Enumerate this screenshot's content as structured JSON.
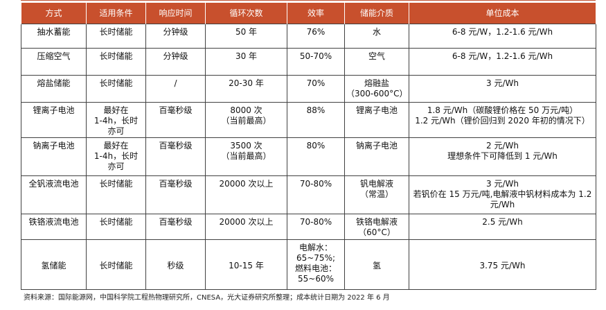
{
  "table": {
    "headers": [
      "方式",
      "适用条件",
      "响应时间",
      "循环次数",
      "效率",
      "储能介质",
      "单位成本"
    ],
    "rows": [
      {
        "method": "抽水蓄能",
        "condition": "长时储能",
        "response": "分钟级",
        "cycles": "50 年",
        "efficiency": "76%",
        "medium": "水",
        "cost": "6-8 元/W，1.2-1.6 元/Wh"
      },
      {
        "method": "压缩空气",
        "condition": "长时储能",
        "response": "分钟级",
        "cycles": "30 年",
        "efficiency": "50-70%",
        "medium": "空气",
        "cost": "6-8 元/W，1.2-1.6 元/Wh"
      },
      {
        "method": "熔盐储能",
        "condition": "长时储能",
        "response": "/",
        "cycles": "20-30 年",
        "efficiency": "70%",
        "medium": "熔融盐\n（300-600°C）",
        "cost": "3 元/Wh"
      },
      {
        "method": "锂离子电池",
        "condition": "最好在\n1-4h，长时\n亦可",
        "response": "百毫秒级",
        "cycles": "8000 次\n（当前最高）",
        "efficiency": "88%",
        "medium": "锂离子电池",
        "cost": "1.8 元/Wh（碳酸锂价格在 50 万元/吨）\n1.2 元/Wh（锂价回归到 2020 年初的情况下）"
      },
      {
        "method": "钠离子电池",
        "condition": "最好在\n1-4h，长时\n亦可",
        "response": "百毫秒级",
        "cycles": "3500 次\n（当前最高）",
        "efficiency": "80%",
        "medium": "钠离子电池",
        "cost": "2 元/Wh\n理想条件下可降低到 1 元/Wh"
      },
      {
        "method": "全钒液流电池",
        "condition": "长时储能",
        "response": "百毫秒级",
        "cycles": "20000 次以上",
        "efficiency": "70-80%",
        "medium": "钒电解液\n（常温）",
        "cost": "3 元/Wh\n若钒价在 15 万元/吨,电解液中钒材料成本为 1.2\n元/Wh"
      },
      {
        "method": "铁铬液流电池",
        "condition": "长时储能",
        "response": "百毫秒级",
        "cycles": "20000 次以上",
        "efficiency": "70-80%",
        "medium": "铁铬电解液\n（60°C）",
        "cost": "2.5 元/Wh"
      },
      {
        "method": "氢储能",
        "condition": "长时储能",
        "response": "秒级",
        "cycles": "10-15 年",
        "efficiency": "电解水：\n65~75%;\n燃料电池：\n55~60%",
        "medium": "氢",
        "cost": "3.75 元/Wh"
      }
    ]
  },
  "source": "资料来源：国际能源网，中国科学院工程热物理研究所，CNESA，光大证券研究所整理；成本统计日期为 2022 年 6 月"
}
